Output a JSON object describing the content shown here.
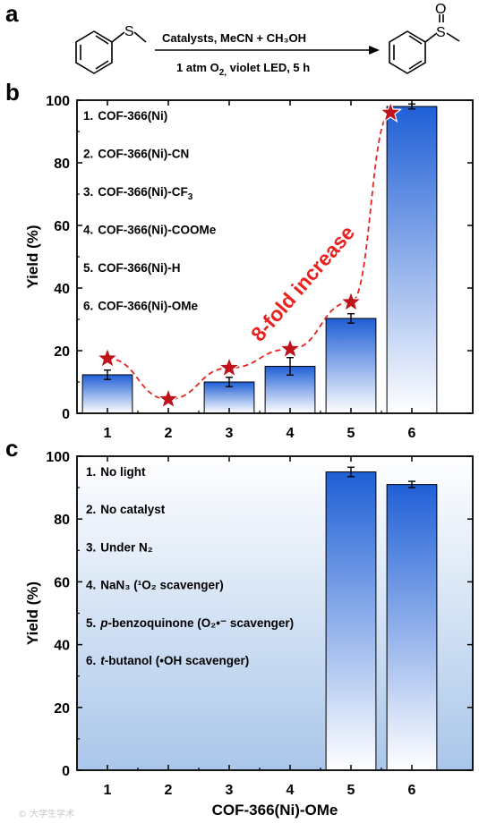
{
  "panel_labels": {
    "a": "a",
    "b": "b",
    "c": "c"
  },
  "reaction": {
    "line1": "Catalysts, MeCN + CH₃OH",
    "line2_pre": "1 atm O",
    "line2_sub": "2,",
    "line2_post": " violet LED, 5 h"
  },
  "watermark": "© 大学生学术",
  "colors": {
    "bar_top": "#1f5fd6",
    "bar_bottom": "#ffffff",
    "marker": "#c0141c",
    "dashed_line": "#e8231f",
    "annotation": "#e8231f"
  },
  "chart_data": [
    {
      "type": "bar",
      "panel": "b",
      "categories": [
        "1",
        "2",
        "3",
        "4",
        "5",
        "6"
      ],
      "values": [
        12.3,
        0,
        10.0,
        15.0,
        30.3,
        98.0
      ],
      "errors": [
        1.5,
        0,
        1.5,
        2.8,
        1.5,
        0.8
      ],
      "marker_values": [
        17.5,
        4.5,
        14.5,
        20.5,
        35.5,
        96.0
      ],
      "marker_x": [
        1.0,
        2.0,
        3.0,
        4.0,
        5.0,
        5.65
      ],
      "ylabel": "Yield (%)",
      "xlabel": "",
      "ylim": [
        0,
        100
      ],
      "yticks": [
        "0",
        "20",
        "40",
        "60",
        "80",
        "100"
      ],
      "annotation": "8-fold increase",
      "legend": [
        {
          "num": "1.",
          "text": "COF-366(Ni)",
          "sub": "",
          "post": ""
        },
        {
          "num": "2.",
          "text": "COF-366(Ni)-CN",
          "sub": "",
          "post": ""
        },
        {
          "num": "3.",
          "text": "COF-366(Ni)-CF",
          "sub": "3",
          "post": ""
        },
        {
          "num": "4.",
          "text": "COF-366(Ni)-COOMe",
          "sub": "",
          "post": ""
        },
        {
          "num": "5.",
          "text": "COF-366(Ni)-H",
          "sub": "",
          "post": ""
        },
        {
          "num": "6.",
          "text": "COF-366(Ni)-OMe",
          "sub": "",
          "post": ""
        }
      ]
    },
    {
      "type": "bar",
      "panel": "c",
      "categories": [
        "1",
        "2",
        "3",
        "4",
        "5",
        "6"
      ],
      "values": [
        0,
        0,
        0,
        0,
        95.0,
        91.0
      ],
      "errors": [
        0,
        0,
        0,
        0,
        1.5,
        1.0
      ],
      "ylabel": "Yield (%)",
      "xlabel": "COF-366(Ni)-OMe",
      "ylim": [
        0,
        100
      ],
      "yticks": [
        "0",
        "20",
        "40",
        "60",
        "80",
        "100"
      ],
      "legend": [
        {
          "num": "1.",
          "text": "No light"
        },
        {
          "num": "2.",
          "text": "No catalyst"
        },
        {
          "num": "3.",
          "text": "Under N₂"
        },
        {
          "num": "4.",
          "text": "NaN₃ (¹O₂ scavenger)"
        },
        {
          "num": "5.",
          "italic": "p",
          "text": "-benzoquinone (O₂•⁻ scavenger)"
        },
        {
          "num": "6.",
          "italic": "t",
          "text": "-butanol (•OH scavenger)"
        }
      ]
    }
  ]
}
